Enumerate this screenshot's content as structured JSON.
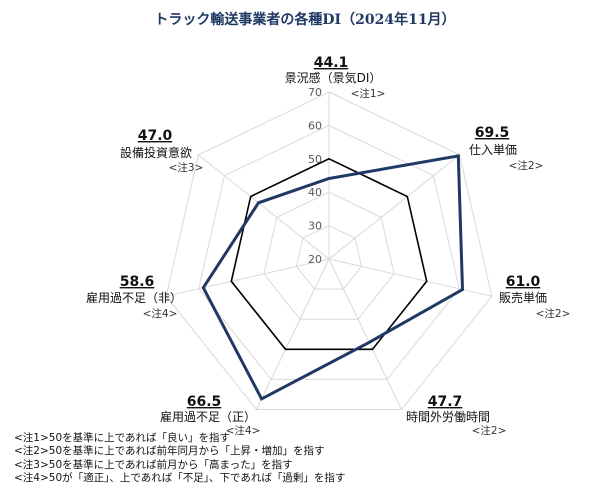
{
  "chart_data": {
    "type": "radar",
    "title": "トラック輸送事業者の各種DI（2024年11月）",
    "rlim": [
      20,
      70
    ],
    "ticks": [
      20,
      30,
      40,
      50,
      60,
      70
    ],
    "reference_value": 50,
    "axes": [
      {
        "name": "景況感（景気DI）",
        "value": 44.1,
        "value_label": "44.1",
        "note": "<注1>"
      },
      {
        "name": "仕入単価",
        "value": 69.5,
        "value_label": "69.5",
        "note": "<注2>"
      },
      {
        "name": "販売単価",
        "value": 61.0,
        "value_label": "61.0",
        "note": "<注2>"
      },
      {
        "name": "時間外労働時間",
        "value": 47.7,
        "value_label": "47.7",
        "note": "<注2>"
      },
      {
        "name": "雇用過不足（正）",
        "value": 66.5,
        "value_label": "66.5",
        "note": "<注4>"
      },
      {
        "name": "雇用過不足（非）",
        "value": 58.6,
        "value_label": "58.6",
        "note": "<注4>"
      },
      {
        "name": "設備投資意欲",
        "value": 47.0,
        "value_label": "47.0",
        "note": "<注3>"
      }
    ],
    "colors": {
      "series": "#1f3864",
      "reference": "#000000",
      "grid": "#d9d9d9",
      "tick": "#595959"
    }
  },
  "notes": [
    "<注1>50を基準に上であれば「良い」を指す",
    "<注2>50を基準に上であれば前年同月から「上昇・増加」を指す",
    "<注3>50を基準に上であれば前月から「高まった」を指す",
    "<注4>50が「適正」、上であれば「不足」、下であれば「過剰」を指す"
  ]
}
